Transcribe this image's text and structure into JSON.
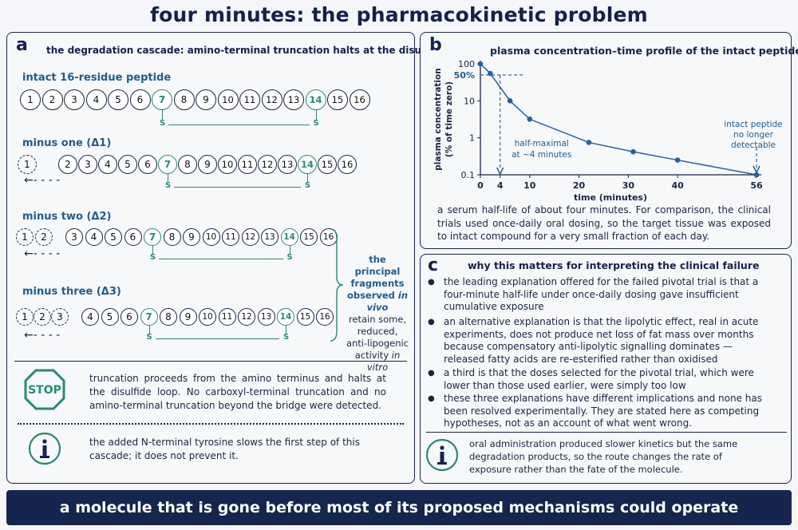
{
  "title": "four minutes: the pharmacokinetic problem",
  "panel_a": {
    "label": "a",
    "title": "the degradation cascade: amino-terminal truncation halts at the disulfide loop",
    "rows": [
      {
        "label": "intact 16-residue peptide",
        "removed": []
      },
      {
        "label": "minus one (Δ1)",
        "removed": [
          "1"
        ]
      },
      {
        "label": "minus two (Δ2)",
        "removed": [
          "1",
          "2"
        ]
      },
      {
        "label": "minus three (Δ3)",
        "removed": [
          "1",
          "2",
          "3"
        ]
      }
    ],
    "residues": [
      "1",
      "2",
      "3",
      "4",
      "5",
      "6",
      "7",
      "8",
      "9",
      "10",
      "11",
      "12",
      "13",
      "14",
      "15",
      "16"
    ],
    "cysteines": [
      "7",
      "14"
    ],
    "sulfur_label": "S",
    "bracket_note": {
      "line1": "the principal",
      "line2": "fragments",
      "line3_a": "observed ",
      "line3_b": "in vivo",
      "line4": "retain some,",
      "line5": "reduced,",
      "line6": "anti-lipogenic",
      "line7_a": "activity ",
      "line7_b": "in vitro"
    },
    "stop_icon_text": "STOP",
    "stop_note": "truncation proceeds from the amino terminus and halts at the disulfide loop. No carboxyl-terminal truncation and no amino-terminal truncation beyond the bridge were detected.",
    "info_note": "the added N-terminal tyrosine slows the first step of this cascade; it does not prevent it."
  },
  "panel_b": {
    "label": "b",
    "title": "plasma concentration–time profile of the intact peptide",
    "ylabel_line1": "plasma concentration",
    "ylabel_line2": "(% of time zero)",
    "xlabel": "time (minutes)",
    "half_label": "50%",
    "annot_half_line1": "half-maximal",
    "annot_half_line2": "at ~4 minutes",
    "annot_end_line1": "intact peptide",
    "annot_end_line2": "no longer",
    "annot_end_line3": "detectable",
    "caption": "a serum half-life of about four minutes. For comparison, the clinical trials used once-daily oral dosing, so the target tissue was exposed to intact compound for a very small fraction of each day."
  },
  "chart_data": {
    "type": "line",
    "xlabel": "time (minutes)",
    "ylabel": "plasma concentration (% of time zero)",
    "y_scale": "log",
    "ylim": [
      0.1,
      100
    ],
    "y_ticks": [
      "100",
      "10",
      "1",
      "0.1"
    ],
    "x_ticks": [
      "0",
      "4",
      "10",
      "20",
      "30",
      "40",
      "56"
    ],
    "x_tick_values": [
      0,
      4,
      10,
      20,
      30,
      40,
      56
    ],
    "series": [
      {
        "x": [
          0,
          2,
          6,
          10,
          22,
          31,
          40,
          56
        ],
        "y": [
          100,
          55,
          10,
          3.2,
          0.75,
          0.42,
          0.25,
          0.1
        ]
      }
    ],
    "markers": [
      {
        "type": "half-max",
        "x": 4,
        "y": 50
      }
    ]
  },
  "panel_c": {
    "label": "c",
    "title": "why this matters for interpreting the clinical failure",
    "bullets": [
      "the leading explanation offered for the failed pivotal trial is that a four-minute half-life under once-daily dosing gave insufficient cumulative exposure",
      "an alternative explanation is that the lipolytic effect, real in acute experiments, does not produce net loss of fat mass over months because compensatory anti-lipolytic signalling dominates — released fatty acids are re-esterified rather than oxidised",
      "a third is that the doses selected for the pivotal trial, which were lower than those used earlier, were simply too low",
      "these three explanations have different implications and none has been resolved experimentally. They are stated here as competing hypotheses, not as an account of what went wrong."
    ],
    "info_note": "oral administration produced slower kinetics but the same degradation products, so the route changes the rate of exposure rather than the fate of the molecule."
  },
  "footer": "a molecule that is gone before most of its proposed mechanisms could operate",
  "colors": {
    "navy": "#15224a",
    "teal": "#2a8a70",
    "blue": "#1f5d8c",
    "line": "#2760a0"
  }
}
